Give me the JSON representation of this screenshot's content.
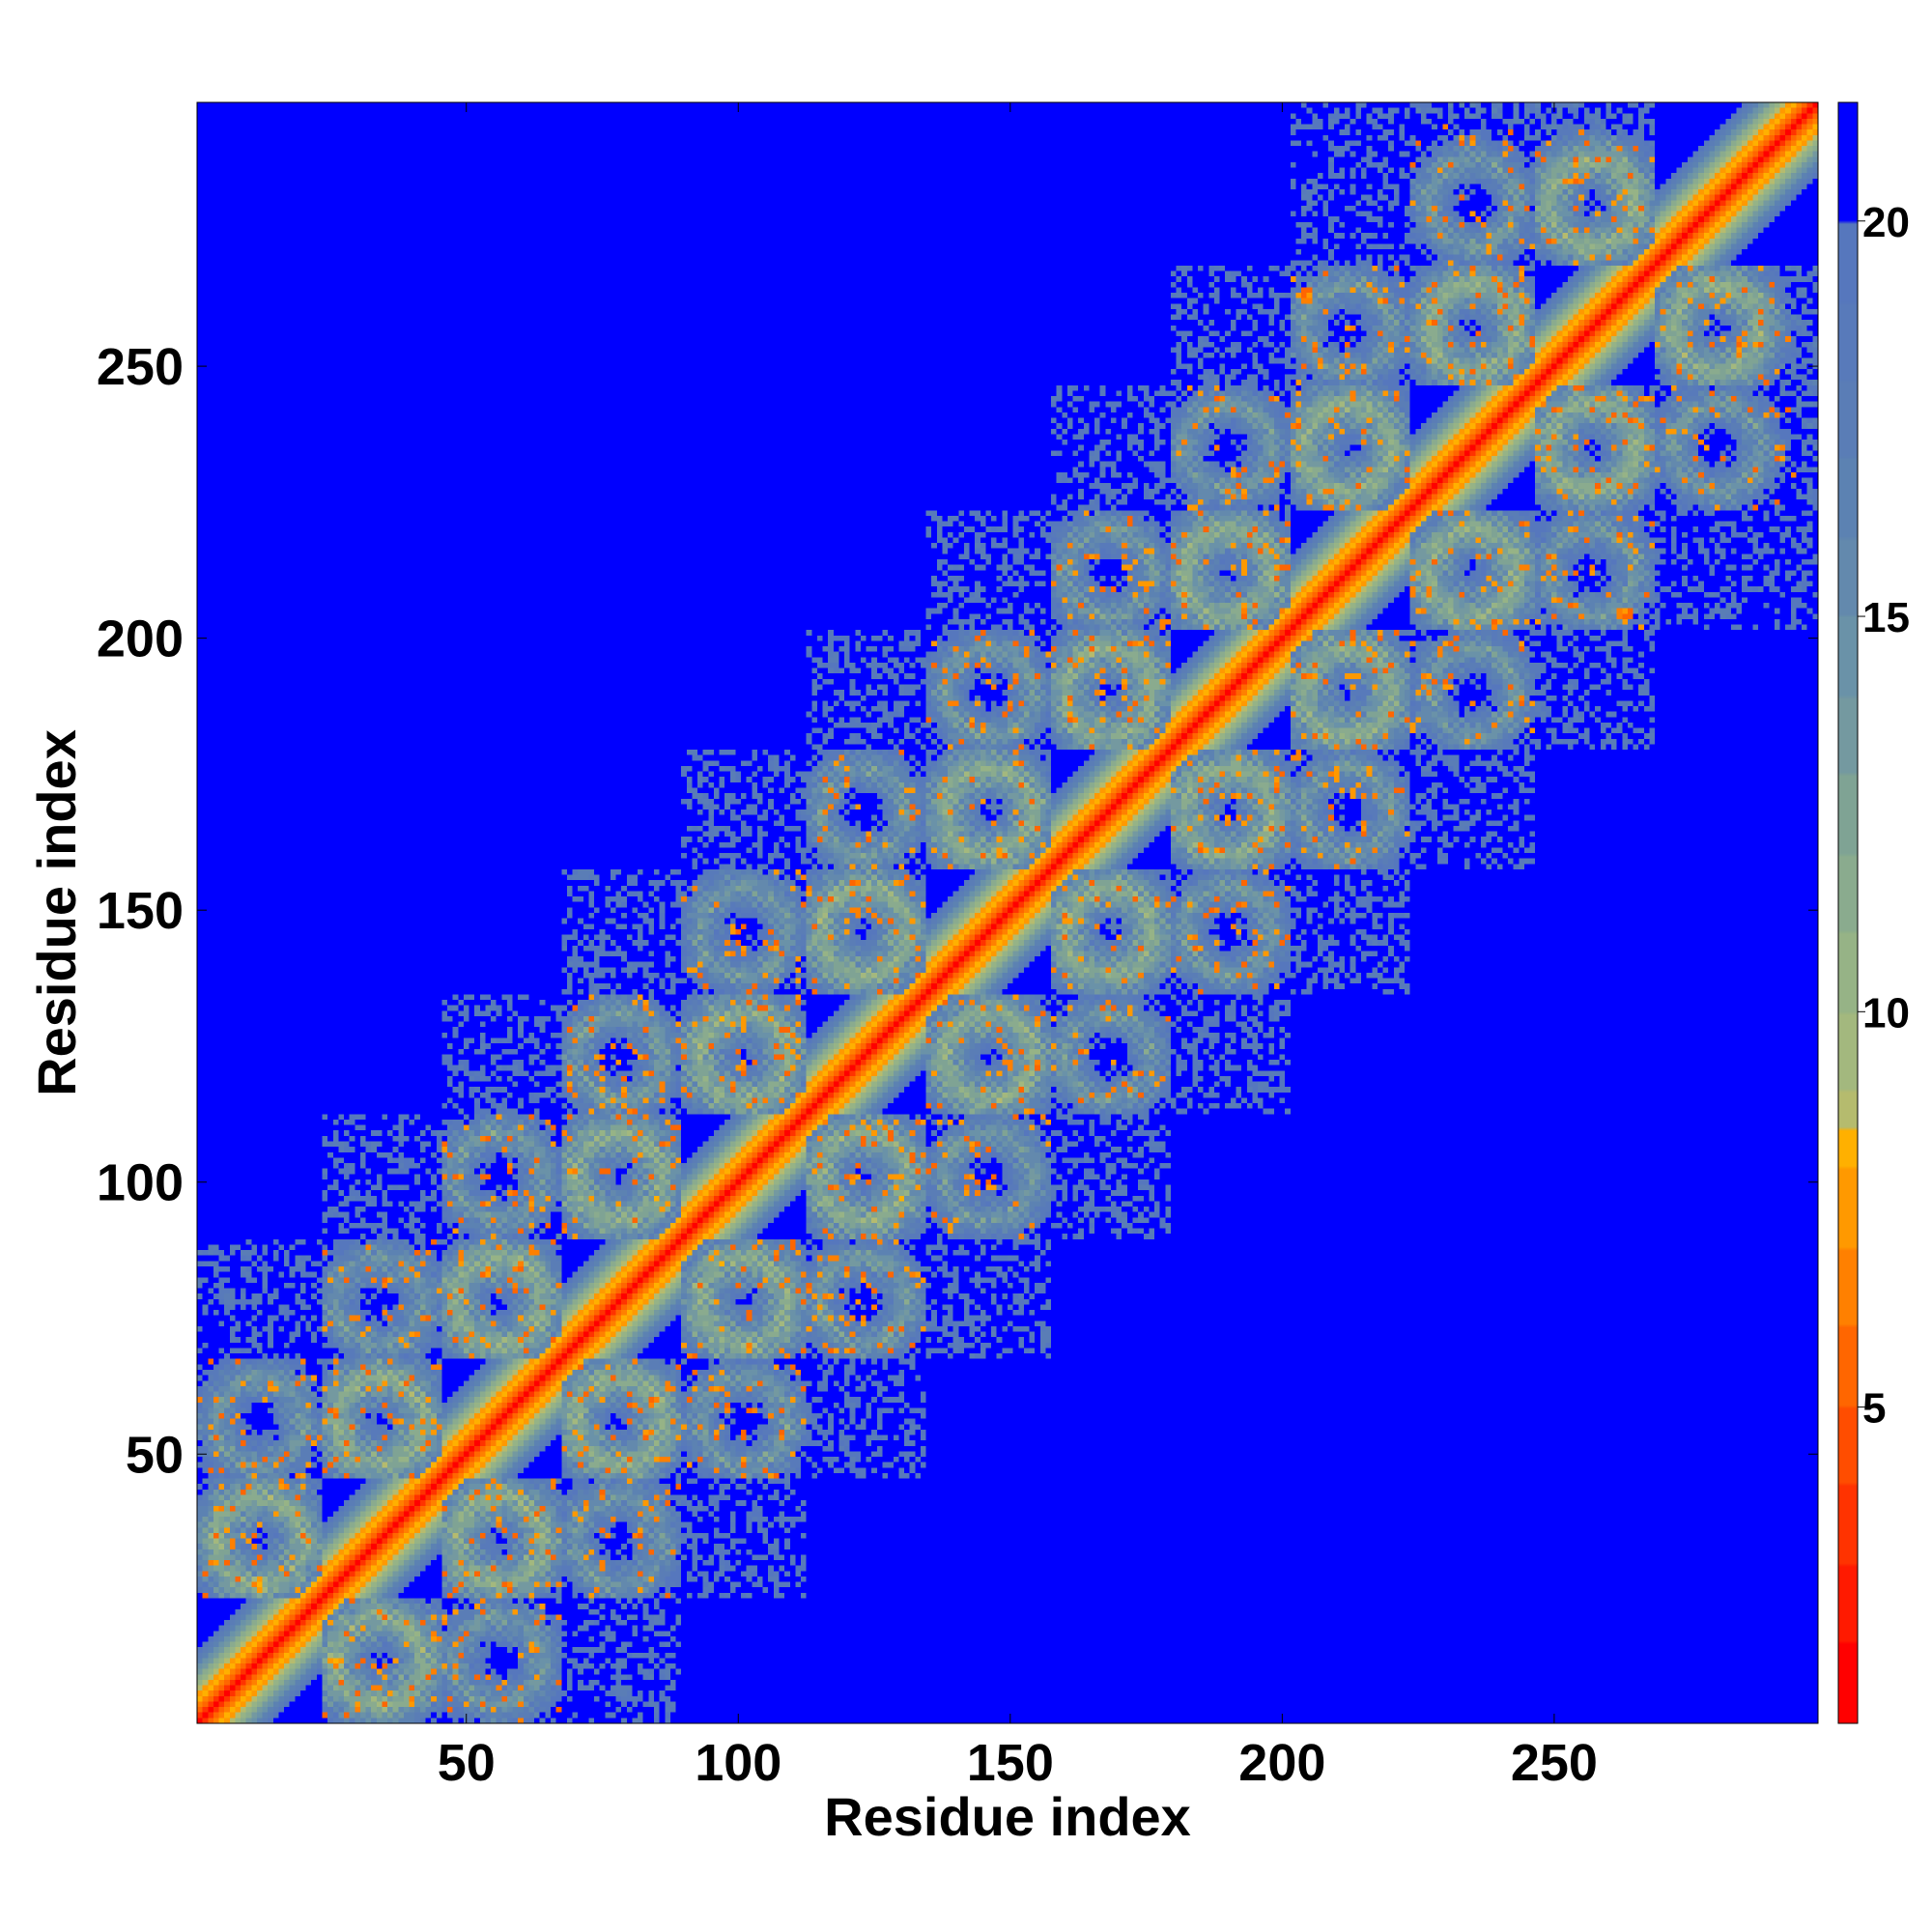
{
  "chart_data": {
    "type": "heatmap",
    "title": "",
    "xlabel": "Residue index",
    "ylabel": "Residue index",
    "n_residues": 298,
    "xlim": [
      1,
      298
    ],
    "ylim": [
      1,
      298
    ],
    "x_ticks": [
      50,
      100,
      150,
      200,
      250
    ],
    "x_tick_labels": [
      "50",
      "100",
      "150",
      "200",
      "250"
    ],
    "y_ticks": [
      50,
      100,
      150,
      200,
      250
    ],
    "y_tick_labels": [
      "50",
      "100",
      "150",
      "200",
      "250"
    ],
    "colorbar": {
      "range": [
        1,
        21.5
      ],
      "ticks": [
        5,
        10,
        15,
        20
      ],
      "tick_labels": [
        "5",
        "10",
        "15",
        "20"
      ],
      "levels": [
        {
          "max": 2,
          "color": "#ff0000"
        },
        {
          "max": 3,
          "color": "#ff1a00"
        },
        {
          "max": 4,
          "color": "#ff3300"
        },
        {
          "max": 5,
          "color": "#ff4d00"
        },
        {
          "max": 6,
          "color": "#ff6600"
        },
        {
          "max": 7,
          "color": "#ff8000"
        },
        {
          "max": 8,
          "color": "#ff9900"
        },
        {
          "max": 8.5,
          "color": "#ffb000"
        },
        {
          "max": 9,
          "color": "#b5bb6e"
        },
        {
          "max": 10,
          "color": "#a3b87e"
        },
        {
          "max": 11,
          "color": "#96b386"
        },
        {
          "max": 12,
          "color": "#8aab8e"
        },
        {
          "max": 13,
          "color": "#7fa394"
        },
        {
          "max": 14,
          "color": "#7499a0"
        },
        {
          "max": 15,
          "color": "#6a92a8"
        },
        {
          "max": 16,
          "color": "#6389ad"
        },
        {
          "max": 17,
          "color": "#5c82b2"
        },
        {
          "max": 18,
          "color": "#5a7db6"
        },
        {
          "max": 19,
          "color": "#587aba"
        },
        {
          "max": 20,
          "color": "#5677bd"
        },
        {
          "max": 21.5,
          "color": "#0000ff"
        }
      ]
    },
    "structure": {
      "diagonal_distance": 1,
      "helix_spacing": 3.6,
      "helix_blocks_centers": [
        12,
        34,
        56,
        78,
        101,
        123,
        146,
        168,
        190,
        212,
        235,
        257,
        280
      ],
      "off_diagonal_contact_band": "contacts between neighbouring helices within ~60 residues"
    },
    "grid": false,
    "legend": "none"
  }
}
